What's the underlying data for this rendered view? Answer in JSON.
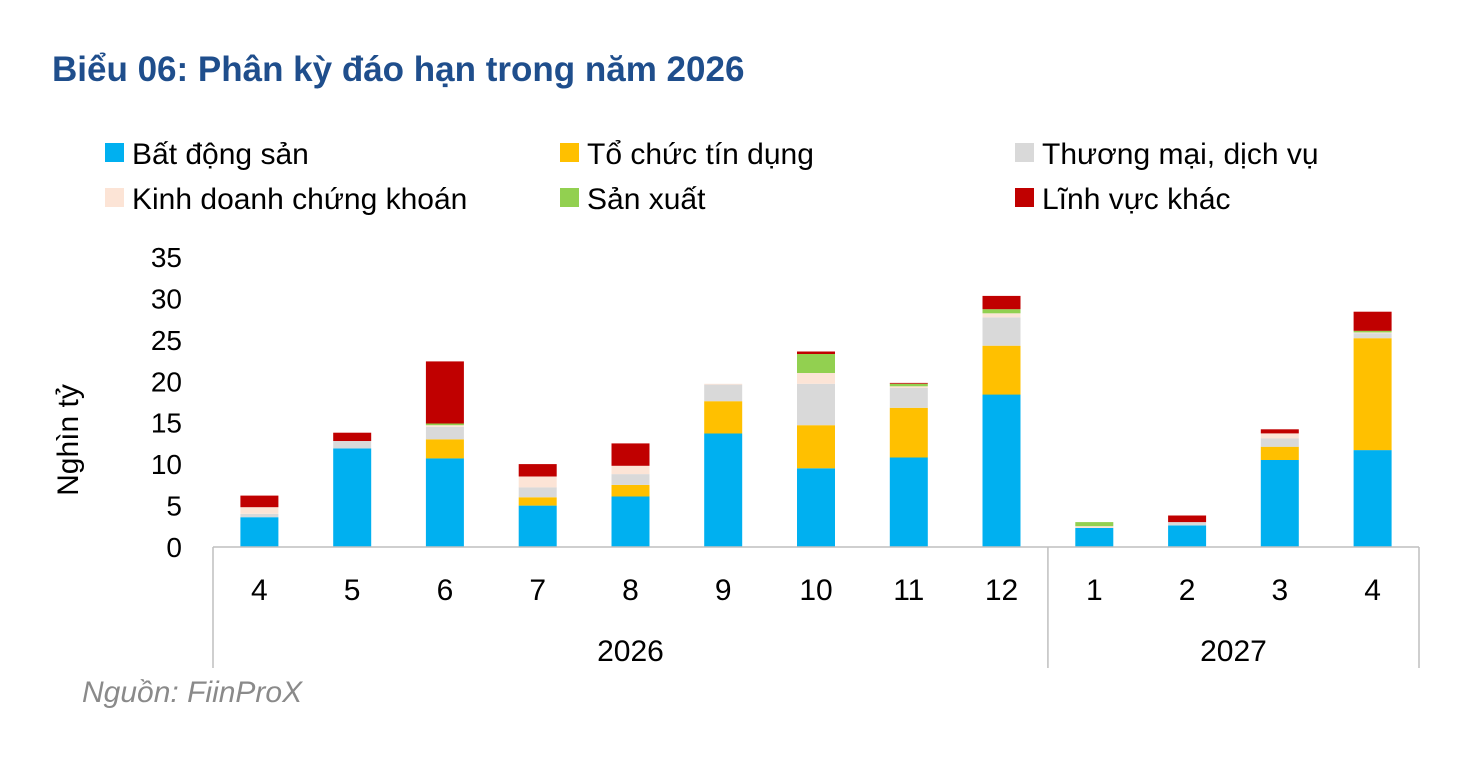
{
  "title": "Biểu 06: Phân kỳ đáo hạn trong năm 2026",
  "source": "Nguồn: FiinProX",
  "colors": {
    "title": "#1f4e8c",
    "source": "#8a8a8a"
  },
  "chart_data": {
    "type": "bar",
    "stacked": true,
    "title": "",
    "ylabel": "Nghìn tỷ",
    "xlabel": "",
    "ylim": [
      0,
      35
    ],
    "yticks": [
      0,
      5,
      10,
      15,
      20,
      25,
      30,
      35
    ],
    "grid": false,
    "legend_position": "top",
    "categories": [
      "4",
      "5",
      "6",
      "7",
      "8",
      "9",
      "10",
      "11",
      "12",
      "1",
      "2",
      "3",
      "4"
    ],
    "groups": [
      {
        "label": "2026",
        "count": 9
      },
      {
        "label": "2027",
        "count": 4
      }
    ],
    "series": [
      {
        "name": "Bất động sản",
        "color": "#00b0f0",
        "values": [
          3.6,
          11.9,
          10.7,
          5.0,
          6.1,
          13.7,
          9.5,
          10.8,
          18.4,
          2.3,
          2.6,
          10.5,
          11.7
        ]
      },
      {
        "name": "Tổ chức tín dụng",
        "color": "#ffc000",
        "values": [
          0,
          0,
          2.3,
          1.0,
          1.4,
          3.9,
          5.2,
          6.0,
          5.9,
          0,
          0,
          1.6,
          13.5
        ]
      },
      {
        "name": "Thương mại, dịch vụ",
        "color": "#d9d9d9",
        "values": [
          0.4,
          0.9,
          1.5,
          1.2,
          1.3,
          2.0,
          5.0,
          2.4,
          3.4,
          0,
          0.4,
          1.0,
          0.6
        ]
      },
      {
        "name": "Kinh doanh chứng khoán",
        "color": "#fce4d6",
        "values": [
          0.8,
          0,
          0.2,
          1.3,
          1.0,
          0.1,
          1.3,
          0.2,
          0.5,
          0.2,
          0,
          0.6,
          0.1
        ]
      },
      {
        "name": "Sản xuất",
        "color": "#92d050",
        "values": [
          0,
          0,
          0.2,
          0,
          0,
          0,
          2.3,
          0.3,
          0.5,
          0.5,
          0,
          0,
          0.2
        ]
      },
      {
        "name": "Lĩnh vực khác",
        "color": "#c00000",
        "values": [
          1.4,
          1.0,
          7.5,
          1.5,
          2.7,
          0,
          0.3,
          0.1,
          1.6,
          0,
          0.8,
          0.5,
          2.3
        ]
      }
    ]
  }
}
